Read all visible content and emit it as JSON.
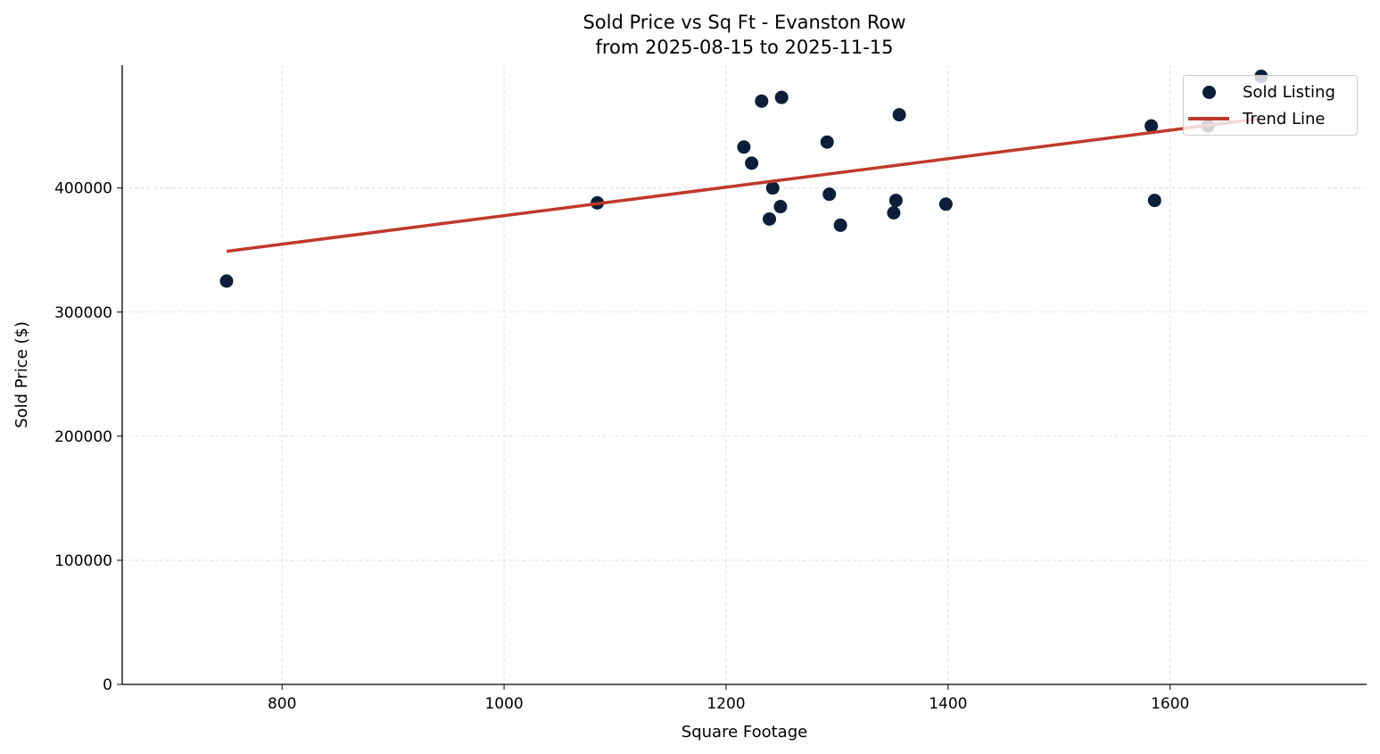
{
  "chart_data": {
    "type": "scatter",
    "title": "Sold Price vs Sq Ft - Evanston Row",
    "subtitle": "from 2025-08-15 to 2025-11-15",
    "xlabel": "Square Footage",
    "ylabel": "Sold Price ($)",
    "xlim": [
      656,
      1777
    ],
    "ylim": [
      0,
      499000
    ],
    "xticks": [
      800,
      1000,
      1200,
      1400,
      1600
    ],
    "yticks": [
      0,
      100000,
      200000,
      300000,
      400000
    ],
    "grid": true,
    "legend_position": "top-right",
    "series": [
      {
        "name": "Sold Listing",
        "type": "scatter",
        "color": "#0b1f3b",
        "points": [
          [
            750,
            325000
          ],
          [
            1084,
            388000
          ],
          [
            1216,
            433000
          ],
          [
            1223,
            420000
          ],
          [
            1232,
            470000
          ],
          [
            1250,
            473000
          ],
          [
            1242,
            400000
          ],
          [
            1239,
            375000
          ],
          [
            1249,
            385000
          ],
          [
            1291,
            437000
          ],
          [
            1293,
            395000
          ],
          [
            1303,
            370000
          ],
          [
            1351,
            380000
          ],
          [
            1353,
            390000
          ],
          [
            1356,
            459000
          ],
          [
            1398,
            387000
          ],
          [
            1583,
            450000
          ],
          [
            1586,
            390000
          ],
          [
            1634,
            450000
          ],
          [
            1682,
            490000
          ]
        ]
      },
      {
        "name": "Trend Line",
        "type": "line",
        "color": "#c0392b",
        "points": [
          [
            750,
            349000
          ],
          [
            1682,
            456000
          ]
        ]
      }
    ]
  }
}
